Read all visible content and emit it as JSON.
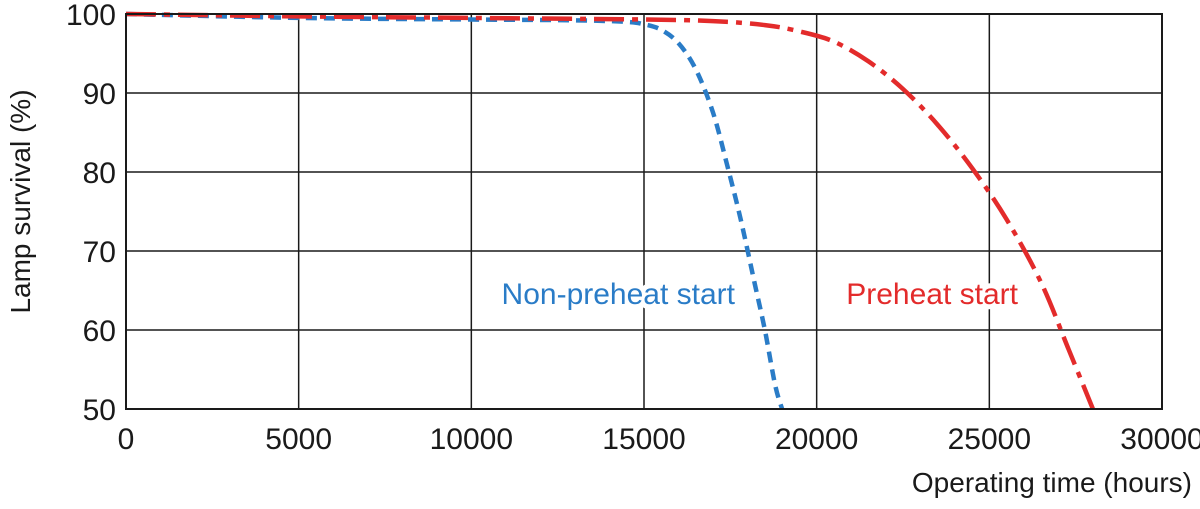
{
  "chart_data": {
    "type": "line",
    "xlabel": "Operating time (hours)",
    "ylabel": "Lamp survival  (%)",
    "xlim": [
      0,
      30000
    ],
    "ylim": [
      50,
      100
    ],
    "xticks": [
      0,
      5000,
      10000,
      15000,
      20000,
      25000,
      30000
    ],
    "yticks": [
      50,
      60,
      70,
      80,
      90,
      100
    ],
    "grid": true,
    "series": [
      {
        "name": "Non-preheat start",
        "color": "#2a7cc7",
        "dash": "dashed",
        "x": [
          0,
          5000,
          10000,
          13000,
          14500,
          15000,
          15500,
          16000,
          16500,
          17000,
          17400,
          17800,
          18200,
          18500,
          18800,
          19000
        ],
        "y": [
          100,
          99.5,
          99.3,
          99.2,
          99.0,
          98.7,
          98.0,
          96.3,
          93.0,
          87.5,
          81.0,
          74.0,
          66.0,
          60.0,
          53.0,
          50
        ]
      },
      {
        "name": "Preheat start",
        "color": "#e32b2b",
        "dash": "dash-dot",
        "x": [
          0,
          5000,
          10000,
          15000,
          17000,
          18500,
          19500,
          20500,
          21500,
          22500,
          23500,
          24500,
          25500,
          26500,
          27300,
          28000
        ],
        "y": [
          100,
          99.7,
          99.5,
          99.3,
          99.1,
          98.6,
          97.8,
          96.5,
          94.0,
          90.5,
          86.0,
          80.5,
          74.0,
          66.0,
          57.5,
          50
        ]
      }
    ]
  }
}
